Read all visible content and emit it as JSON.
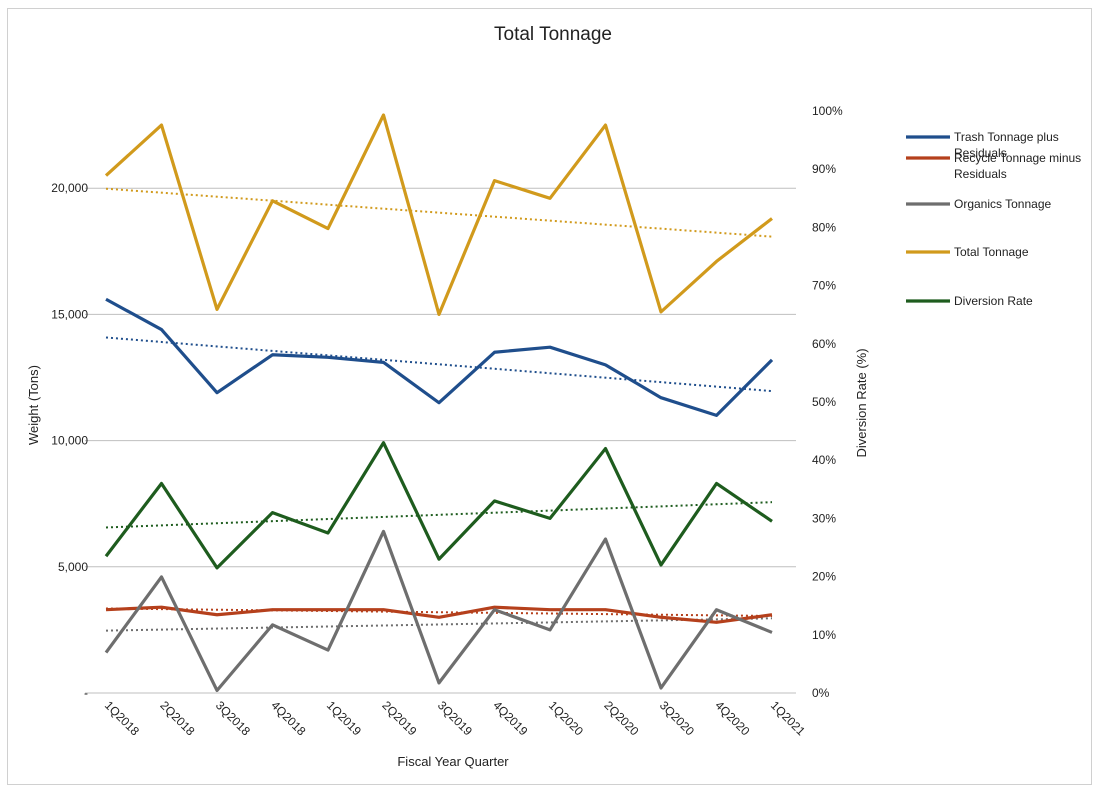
{
  "chart_data": {
    "type": "line",
    "title": "Total Tonnage",
    "xlabel": "Fiscal Year Quarter",
    "ylabel": "Weight (Tons)",
    "y2label": "Diversion Rate (%)",
    "categories": [
      "1Q2018",
      "2Q2018",
      "3Q2018",
      "4Q2018",
      "1Q2019",
      "2Q2019",
      "3Q2019",
      "4Q2019",
      "1Q2020",
      "2Q2020",
      "3Q2020",
      "4Q2020",
      "1Q2021"
    ],
    "ylim": [
      0,
      25000
    ],
    "y_ticks": [
      0,
      5000,
      10000,
      15000,
      20000
    ],
    "y_tick_labels": [
      "-",
      "5,000",
      "10,000",
      "15,000",
      "20,000"
    ],
    "y2lim": [
      0,
      100
    ],
    "y2_ticks": [
      0,
      10,
      20,
      30,
      40,
      50,
      60,
      70,
      80,
      90,
      100
    ],
    "y2_tick_labels": [
      "0%",
      "10%",
      "20%",
      "30%",
      "40%",
      "50%",
      "60%",
      "70%",
      "80%",
      "90%",
      "100%"
    ],
    "grid": "horizontal at left-axis major ticks",
    "legend_position": "right",
    "series": [
      {
        "name": "Trash Tonnage plus Residuals",
        "axis": "left",
        "color": "#1f4e8c",
        "trendline": true,
        "values": [
          15600,
          14400,
          11900,
          13400,
          13300,
          13100,
          11500,
          13500,
          13700,
          13000,
          11700,
          11000,
          13200
        ]
      },
      {
        "name": "Recycle Tonnage minus Residuals",
        "axis": "left",
        "color": "#b5401c",
        "trendline": true,
        "values": [
          3300,
          3400,
          3100,
          3300,
          3300,
          3300,
          3000,
          3400,
          3300,
          3300,
          3000,
          2800,
          3100
        ]
      },
      {
        "name": "Organics Tonnage",
        "axis": "left",
        "color": "#6e6e6e",
        "trendline": true,
        "values": [
          1600,
          4600,
          100,
          2700,
          1700,
          6400,
          400,
          3300,
          2500,
          6100,
          200,
          3300,
          2400
        ]
      },
      {
        "name": "Total Tonnage",
        "axis": "left",
        "color": "#d19a1c",
        "trendline": true,
        "values": [
          20500,
          22500,
          15200,
          19500,
          18400,
          22900,
          15000,
          20300,
          19600,
          22500,
          15100,
          17100,
          18800
        ]
      },
      {
        "name": "Diversion Rate",
        "axis": "right",
        "color": "#1e5c1e",
        "trendline": true,
        "values": [
          23.5,
          36,
          21.5,
          31,
          27.5,
          43,
          23,
          33,
          30,
          42,
          22,
          36,
          29.5
        ]
      }
    ]
  }
}
